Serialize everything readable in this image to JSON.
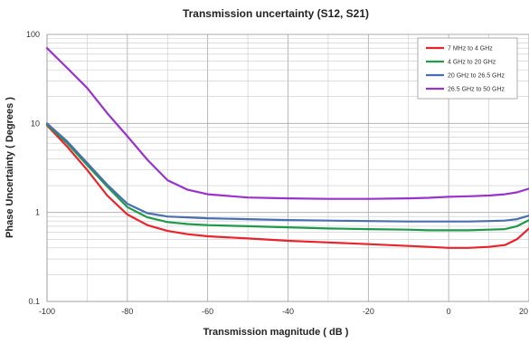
{
  "chart_data": {
    "type": "line",
    "title": "Transmission uncertainty (S12, S21)",
    "xlabel": "Transmission magnitude ( dB )",
    "ylabel": "Phase Uncertainty ( Degrees )",
    "xlim": [
      -100,
      20
    ],
    "ylim": [
      0.1,
      100
    ],
    "yscale": "log",
    "grid": true,
    "legend_position": "top-right",
    "x_ticks": [
      "-100",
      "-80",
      "-60",
      "-40",
      "-20",
      "0",
      "20"
    ],
    "y_ticks": [
      "0.1",
      "1",
      "10",
      "100"
    ],
    "x": [
      -100,
      -95,
      -90,
      -85,
      -80,
      -75,
      -70,
      -65,
      -60,
      -50,
      -40,
      -30,
      -20,
      -10,
      -5,
      0,
      5,
      10,
      14,
      17,
      20
    ],
    "series": [
      {
        "name": "7 MHz to 4 GHz",
        "color": "#e8242c",
        "values": [
          9.5,
          5.5,
          3.0,
          1.55,
          0.95,
          0.72,
          0.62,
          0.57,
          0.54,
          0.51,
          0.48,
          0.46,
          0.44,
          0.42,
          0.41,
          0.4,
          0.4,
          0.41,
          0.43,
          0.5,
          0.66
        ]
      },
      {
        "name": "4 GHz to 20 GHz",
        "color": "#1f9a4a",
        "values": [
          9.7,
          6.0,
          3.4,
          1.95,
          1.15,
          0.88,
          0.78,
          0.74,
          0.72,
          0.7,
          0.68,
          0.66,
          0.65,
          0.64,
          0.63,
          0.63,
          0.63,
          0.64,
          0.65,
          0.7,
          0.82
        ]
      },
      {
        "name": "20 GHz to 26.5 GHz",
        "color": "#4a6fb0",
        "values": [
          10.0,
          6.3,
          3.6,
          2.05,
          1.25,
          0.98,
          0.9,
          0.88,
          0.86,
          0.84,
          0.82,
          0.81,
          0.8,
          0.79,
          0.79,
          0.79,
          0.79,
          0.8,
          0.81,
          0.84,
          0.92
        ]
      },
      {
        "name": "26.5 GHz to 50 GHz",
        "color": "#9933cc",
        "values": [
          70,
          42,
          25,
          13,
          7.2,
          3.9,
          2.3,
          1.8,
          1.6,
          1.47,
          1.44,
          1.42,
          1.42,
          1.44,
          1.46,
          1.5,
          1.52,
          1.55,
          1.6,
          1.68,
          1.85
        ]
      }
    ]
  }
}
